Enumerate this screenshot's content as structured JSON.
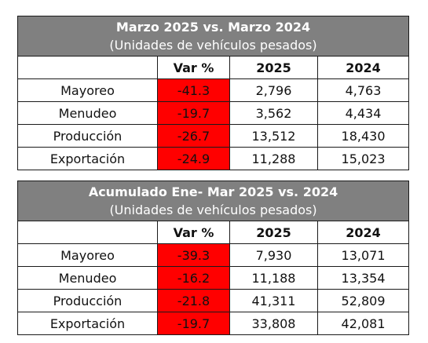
{
  "tables": [
    {
      "title": "Marzo 2025 vs. Marzo 2024",
      "subtitle": "(Unidades de vehículos pesados)",
      "headers": [
        "",
        "Var %",
        "2025",
        "2024"
      ],
      "rows": [
        {
          "label": "Mayoreo",
          "var": "-41.3",
          "y2025": "2,796",
          "y2024": "4,763"
        },
        {
          "label": "Menudeo",
          "var": "-19.7",
          "y2025": "3,562",
          "y2024": "4,434"
        },
        {
          "label": "Producción",
          "var": "-26.7",
          "y2025": "13,512",
          "y2024": "18,430"
        },
        {
          "label": "Exportación",
          "var": "-24.9",
          "y2025": "11,288",
          "y2024": "15,023"
        }
      ]
    },
    {
      "title": "Acumulado Ene- Mar 2025 vs. 2024",
      "subtitle": "(Unidades de vehículos pesados)",
      "headers": [
        "",
        "Var %",
        "2025",
        "2024"
      ],
      "rows": [
        {
          "label": "Mayoreo",
          "var": "-39.3",
          "y2025": "7,930",
          "y2024": "13,071"
        },
        {
          "label": "Menudeo",
          "var": "-16.2",
          "y2025": "11,188",
          "y2024": "13,354"
        },
        {
          "label": "Producción",
          "var": "-21.8",
          "y2025": "41,311",
          "y2024": "52,809"
        },
        {
          "label": "Exportación",
          "var": "-19.7",
          "y2025": "33,808",
          "y2024": "42,081"
        }
      ]
    }
  ],
  "colors": {
    "header_bg": "#808080",
    "negative_var": "#ff0000"
  }
}
